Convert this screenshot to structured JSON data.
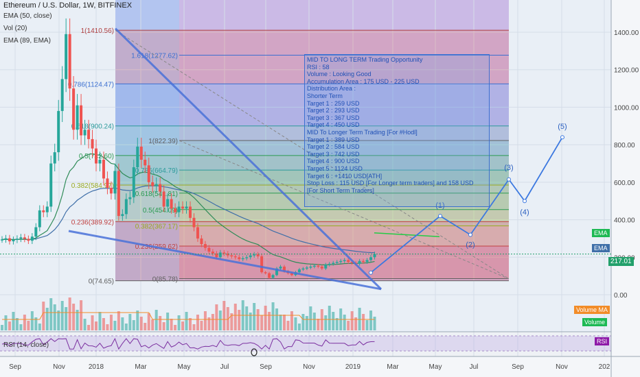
{
  "symbol_title": "Ethereum / U.S. Dollar, 1W, BITFINEX",
  "indicators": {
    "ema50": "EMA (50, close)",
    "vol": "Vol (20)",
    "ema89": "EMA (89, EMA)",
    "rsi": "RSI (14, close)"
  },
  "price_axis": {
    "ticks": [
      "1400.00",
      "1200.00",
      "1000.00",
      "800.00",
      "600.00",
      "400.00",
      "200.00",
      "0.00"
    ],
    "last_price": "217.01"
  },
  "time_axis": {
    "labels": [
      "Sep",
      "Nov",
      "2018",
      "Mar",
      "May",
      "Jul",
      "Sep",
      "Nov",
      "2019",
      "Mar",
      "May",
      "Jul",
      "Sep",
      "Nov",
      "202"
    ]
  },
  "right_tags": {
    "ema_green": "EMA",
    "ema_blue": "EMA",
    "volume_ma": "Volume MA",
    "volume": "Volume",
    "rsi": "RSI"
  },
  "colors": {
    "up": "#26a69a",
    "down": "#ef5350",
    "trendline": "#4a72d9",
    "projection": "#3b78e0"
  },
  "fib_levels_left": [
    "1(1410.56)",
    "0.786(1124.47)",
    "0.618(900.24)",
    "0.5(742.60)",
    "0.382(584.97)",
    "0.236(389.92)",
    "0(74.65)"
  ],
  "fib_levels_right": [
    "1.618(1277.62)",
    "1(822.39)",
    "0.786(664.79)",
    "0.618(541.81)",
    "0.5(454.09)",
    "0.382(367.17)",
    "0.236(259.62)",
    "0(85.78)"
  ],
  "wave_labels": [
    "(1)",
    "(2)",
    "(3)",
    "(4)",
    "(5)"
  ],
  "note": [
    "MID TO LONG TERM Trading Opportunity",
    "RSI : 58",
    "Volume : Looking Good",
    "Accumulation Area : 175 USD - 225 USD",
    "Distribution Area :",
    "Shorter Term",
    "Target 1 : 259 USD",
    "Target 2 : 293 USD",
    "Target 3 : 367 USD",
    "Target 4 : 450 USD",
    "MID To Longer Term Trading [For #Hodl]",
    "Target 1 : 389 USD",
    "Target 2 : 584 USD",
    "Target 3 : 742 USD",
    "Target 4 : 900 USD",
    "Target 5 : 1124 USD",
    "Target 6 : +1410 USD[ATH]",
    "Stop Loss : 115 USD [For Longer term traders] and 158 USD",
    "[For Short Term Traders]"
  ],
  "chart_data": {
    "type": "candlestick",
    "title": "Ethereum / U.S. Dollar, 1W, BITFINEX",
    "ylim": [
      -100,
      1500
    ],
    "price_series_weekly_close": [
      295,
      301,
      285,
      293,
      299,
      306,
      298,
      288,
      310,
      360,
      450,
      440,
      470,
      700,
      760,
      980,
      1150,
      1390,
      1100,
      880,
      1010,
      850,
      880,
      830,
      780,
      700,
      720,
      620,
      570,
      540,
      660,
      420,
      430,
      510,
      520,
      680,
      790,
      720,
      690,
      600,
      580,
      590,
      550,
      470,
      510,
      460,
      440,
      470,
      460,
      470,
      410,
      360,
      300,
      270,
      250,
      230,
      220,
      200,
      225,
      220,
      210,
      205,
      200,
      190,
      195,
      200,
      210,
      215,
      205,
      120,
      115,
      90,
      105,
      140,
      150,
      125,
      115,
      105,
      120,
      135,
      140,
      145,
      150,
      155,
      150,
      140,
      160,
      165,
      170,
      175,
      180,
      185,
      175,
      170,
      165,
      180,
      175,
      185,
      200,
      217
    ],
    "projection_points": [
      [
        0,
        120
      ],
      [
        14,
        420
      ],
      [
        21,
        320
      ],
      [
        28,
        610
      ],
      [
        33,
        500
      ],
      [
        40,
        840
      ]
    ],
    "volume": "relative weekly volume bars",
    "rsi_range": [
      30,
      70
    ]
  }
}
